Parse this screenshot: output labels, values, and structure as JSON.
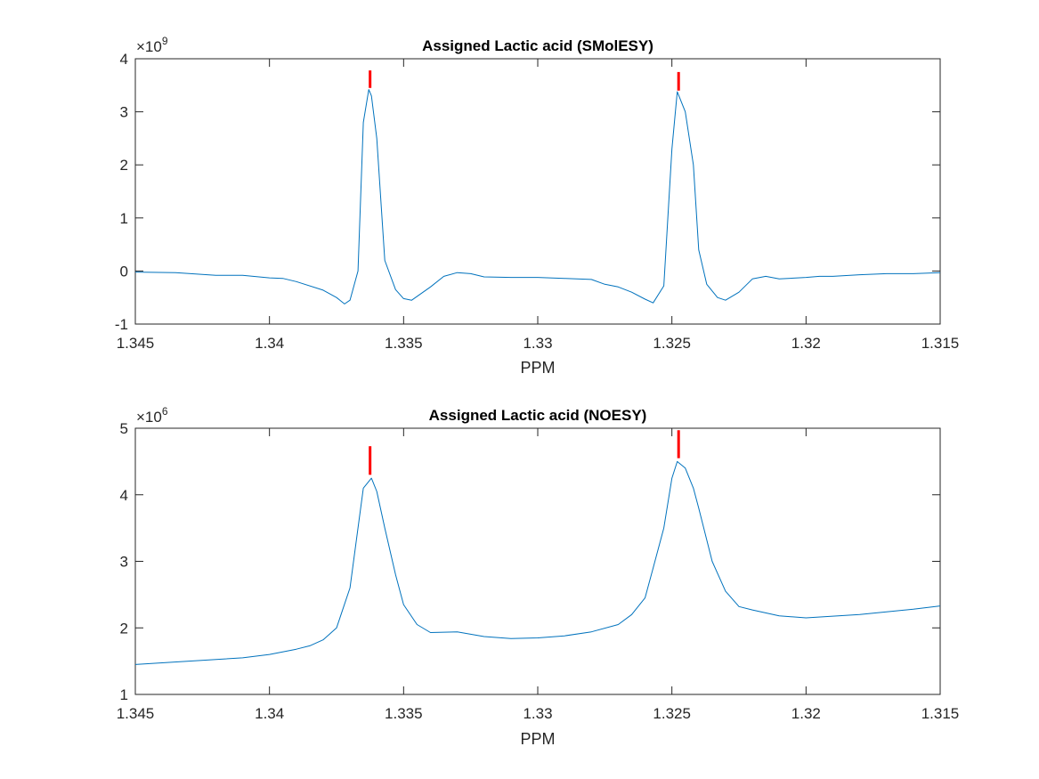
{
  "chart_data": [
    {
      "type": "line",
      "title": "Assigned Lactic acid (SMolESY)",
      "xlabel": "PPM",
      "ylabel": "",
      "x_reversed": true,
      "xlim": [
        1.315,
        1.345
      ],
      "ylim": [
        -1,
        4
      ],
      "y_exponent_base": "×10",
      "y_exponent": "9",
      "xticks": [
        1.345,
        1.34,
        1.335,
        1.33,
        1.325,
        1.32,
        1.315
      ],
      "xtick_labels": [
        "1.345",
        "1.34",
        "1.335",
        "1.33",
        "1.325",
        "1.32",
        "1.315"
      ],
      "yticks": [
        -1,
        0,
        1,
        2,
        3,
        4
      ],
      "ytick_labels": [
        "-1",
        "0",
        "1",
        "2",
        "3",
        "4"
      ],
      "grid": false,
      "line_color": "#0072BD",
      "marker_color": "#FF0000",
      "series": [
        {
          "x": [
            1.345,
            1.3435,
            1.342,
            1.341,
            1.34,
            1.3395,
            1.339,
            1.338,
            1.3375,
            1.3372,
            1.337,
            1.3367,
            1.3365,
            1.3363,
            1.3362,
            1.336,
            1.3357,
            1.3353,
            1.335,
            1.3347,
            1.334,
            1.3335,
            1.333,
            1.3325,
            1.332,
            1.331,
            1.33,
            1.329,
            1.328,
            1.3275,
            1.327,
            1.3265,
            1.326,
            1.3257,
            1.3253,
            1.325,
            1.3248,
            1.3245,
            1.3242,
            1.324,
            1.3237,
            1.3233,
            1.323,
            1.3225,
            1.322,
            1.3215,
            1.321,
            1.32,
            1.3195,
            1.319,
            1.318,
            1.317,
            1.316,
            1.315
          ],
          "y": [
            -0.02,
            -0.03,
            -0.08,
            -0.08,
            -0.13,
            -0.14,
            -0.2,
            -0.36,
            -0.5,
            -0.62,
            -0.55,
            0.0,
            2.8,
            3.42,
            3.3,
            2.5,
            0.2,
            -0.35,
            -0.52,
            -0.55,
            -0.3,
            -0.1,
            -0.03,
            -0.05,
            -0.11,
            -0.12,
            -0.12,
            -0.14,
            -0.16,
            -0.25,
            -0.3,
            -0.4,
            -0.53,
            -0.6,
            -0.28,
            2.3,
            3.38,
            3.0,
            2.0,
            0.4,
            -0.25,
            -0.5,
            -0.55,
            -0.4,
            -0.15,
            -0.1,
            -0.15,
            -0.12,
            -0.1,
            -0.1,
            -0.07,
            -0.05,
            -0.05,
            -0.03
          ]
        }
      ],
      "markers": [
        {
          "x": 1.33625,
          "y_bottom": 3.45,
          "y_top": 3.78
        },
        {
          "x": 1.32475,
          "y_bottom": 3.4,
          "y_top": 3.75
        }
      ]
    },
    {
      "type": "line",
      "title": "Assigned Lactic acid (NOESY)",
      "xlabel": "PPM",
      "ylabel": "",
      "x_reversed": true,
      "xlim": [
        1.315,
        1.345
      ],
      "ylim": [
        1,
        5
      ],
      "y_exponent_base": "×10",
      "y_exponent": "6",
      "xticks": [
        1.345,
        1.34,
        1.335,
        1.33,
        1.325,
        1.32,
        1.315
      ],
      "xtick_labels": [
        "1.345",
        "1.34",
        "1.335",
        "1.33",
        "1.325",
        "1.32",
        "1.315"
      ],
      "yticks": [
        1,
        2,
        3,
        4,
        5
      ],
      "ytick_labels": [
        "1",
        "2",
        "3",
        "4",
        "5"
      ],
      "grid": false,
      "line_color": "#0072BD",
      "marker_color": "#FF0000",
      "series": [
        {
          "x": [
            1.345,
            1.343,
            1.341,
            1.34,
            1.339,
            1.3385,
            1.338,
            1.3375,
            1.337,
            1.3367,
            1.3365,
            1.3362,
            1.336,
            1.3357,
            1.3353,
            1.335,
            1.3345,
            1.334,
            1.333,
            1.332,
            1.331,
            1.33,
            1.329,
            1.328,
            1.327,
            1.3265,
            1.326,
            1.3257,
            1.3253,
            1.325,
            1.3248,
            1.3245,
            1.3242,
            1.324,
            1.3235,
            1.323,
            1.3225,
            1.322,
            1.321,
            1.32,
            1.318,
            1.317,
            1.316,
            1.315
          ],
          "y": [
            1.45,
            1.5,
            1.55,
            1.6,
            1.68,
            1.73,
            1.82,
            2.0,
            2.6,
            3.5,
            4.1,
            4.25,
            4.05,
            3.5,
            2.8,
            2.35,
            2.05,
            1.93,
            1.94,
            1.87,
            1.84,
            1.85,
            1.88,
            1.94,
            2.05,
            2.2,
            2.45,
            2.9,
            3.5,
            4.25,
            4.5,
            4.4,
            4.1,
            3.8,
            3.0,
            2.55,
            2.32,
            2.27,
            2.18,
            2.15,
            2.2,
            2.24,
            2.28,
            2.33
          ]
        }
      ],
      "markers": [
        {
          "x": 1.33625,
          "y_bottom": 4.3,
          "y_top": 4.73
        },
        {
          "x": 1.32475,
          "y_bottom": 4.55,
          "y_top": 4.97
        }
      ]
    }
  ]
}
